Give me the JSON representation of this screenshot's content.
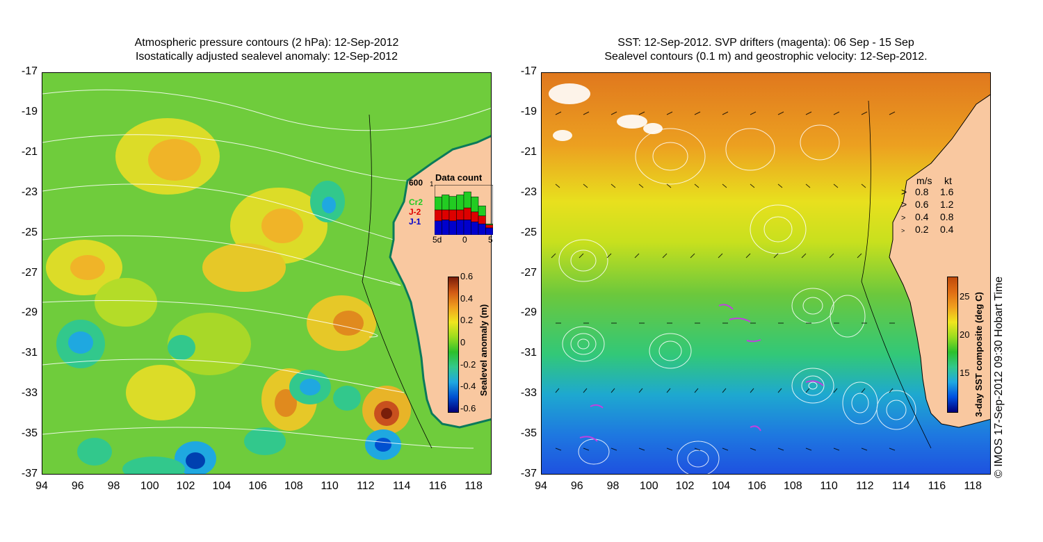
{
  "left_panel": {
    "title_line1": "Atmospheric pressure contours (2 hPa): 12-Sep-2012",
    "title_line2": "Isostatically adjusted sealevel anomaly: 12-Sep-2012",
    "colorbar": {
      "label": "Sealevel anomaly (m)",
      "ticks": [
        "0.6",
        "0.4",
        "0.2",
        "0",
        "-0.2",
        "-0.4",
        "-0.6"
      ],
      "colors": [
        "#00007a",
        "#0050d0",
        "#1fa8e0",
        "#32c88c",
        "#2cc02c",
        "#9adc1e",
        "#f0e61e",
        "#f0a01e",
        "#d25a14",
        "#7a1e0a"
      ]
    },
    "data_count": {
      "title": "Data count",
      "top_tick": "1",
      "label_600": "600",
      "legend": [
        {
          "label": "Cr2",
          "color": "#22cc22"
        },
        {
          "label": "J-2",
          "color": "#dd0000"
        },
        {
          "label": "J-1",
          "color": "#0000cc"
        }
      ],
      "x_ticks": [
        "5d",
        "0",
        "5"
      ],
      "bars": [
        {
          "j1": 0.28,
          "j2": 0.22,
          "cr2": 0.26
        },
        {
          "j1": 0.3,
          "j2": 0.2,
          "cr2": 0.3
        },
        {
          "j1": 0.28,
          "j2": 0.22,
          "cr2": 0.27
        },
        {
          "j1": 0.3,
          "j2": 0.2,
          "cr2": 0.3
        },
        {
          "j1": 0.3,
          "j2": 0.24,
          "cr2": 0.32
        },
        {
          "j1": 0.26,
          "j2": 0.2,
          "cr2": 0.3
        },
        {
          "j1": 0.22,
          "j2": 0.16,
          "cr2": 0.2
        },
        {
          "j1": 0.14,
          "j2": 0.06,
          "cr2": 0.02
        }
      ]
    }
  },
  "right_panel": {
    "title_line1": "SST: 12-Sep-2012. SVP drifters (magenta): 06 Sep - 15 Sep",
    "title_line2": "Sealevel contours (0.1 m) and geostrophic velocity: 12-Sep-2012.",
    "colorbar": {
      "label": "3-day SST composite (deg C)",
      "ticks": [
        "25",
        "20",
        "15"
      ],
      "colors": [
        "#00007a",
        "#0050e0",
        "#1fa8e0",
        "#32c88c",
        "#2cc02c",
        "#9adc1e",
        "#f0e61e",
        "#f0a01e",
        "#e06e14",
        "#c04a0a"
      ]
    },
    "velocity_legend": {
      "header_ms": "m/s",
      "header_kt": "kt",
      "rows": [
        {
          "ms": "0.8",
          "kt": "1.6"
        },
        {
          "ms": "0.6",
          "kt": "1.2"
        },
        {
          "ms": "0.4",
          "kt": "0.8"
        },
        {
          "ms": "0.2",
          "kt": "0.4"
        }
      ]
    }
  },
  "axes": {
    "lon_ticks": [
      "94",
      "96",
      "98",
      "100",
      "102",
      "104",
      "106",
      "108",
      "110",
      "112",
      "114",
      "116",
      "118"
    ],
    "lat_ticks": [
      "-17",
      "-19",
      "-21",
      "-23",
      "-25",
      "-27",
      "-29",
      "-31",
      "-33",
      "-35",
      "-37"
    ]
  },
  "colors": {
    "land": "#f9c8a0",
    "sea_anomaly_base": "#7ed23c",
    "sst_warm": "#e8961e",
    "sst_cold": "#1e7ae0",
    "contour": "#ffffff"
  },
  "credit": "© IMOS 17-Sep-2012 09:30 Hobart Time"
}
